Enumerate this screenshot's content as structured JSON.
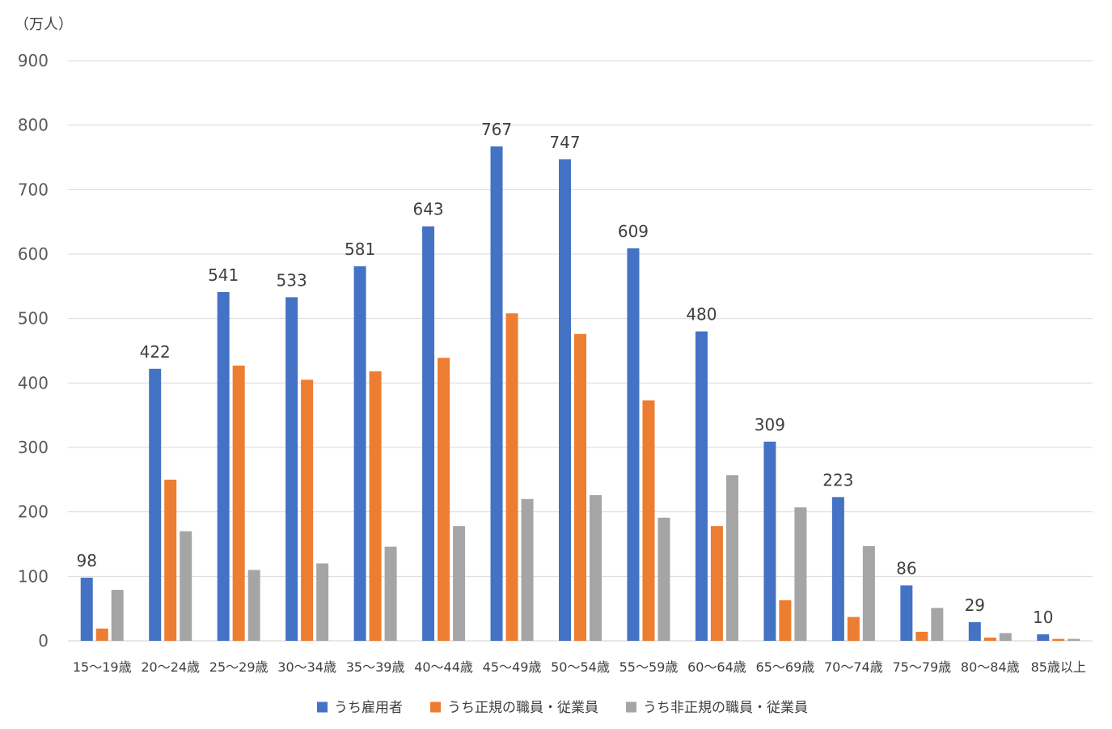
{
  "chart_data": {
    "type": "bar",
    "unit_label": "（万人）",
    "categories": [
      "15～19歳",
      "20～24歳",
      "25～29歳",
      "30～34歳",
      "35～39歳",
      "40～44歳",
      "45～49歳",
      "50～54歳",
      "55～59歳",
      "60～64歳",
      "65～69歳",
      "70～74歳",
      "75～79歳",
      "80～84歳",
      "85歳以上"
    ],
    "series": [
      {
        "name": "うち雇用者",
        "color": "#4472C4",
        "values": [
          98,
          422,
          541,
          533,
          581,
          643,
          767,
          747,
          609,
          480,
          309,
          223,
          86,
          29,
          10
        ]
      },
      {
        "name": "うち正規の職員・従業員",
        "color": "#ED7D31",
        "values": [
          19,
          250,
          427,
          405,
          418,
          439,
          508,
          476,
          373,
          178,
          63,
          37,
          14,
          5,
          3
        ]
      },
      {
        "name": "うち非正規の職員・従業員",
        "color": "#A5A5A5",
        "values": [
          79,
          170,
          110,
          120,
          146,
          178,
          220,
          226,
          191,
          257,
          207,
          147,
          51,
          12,
          3
        ]
      }
    ],
    "data_labels_series": 0,
    "ylim": [
      0,
      900
    ],
    "yticks": [
      0,
      100,
      200,
      300,
      400,
      500,
      600,
      700,
      800,
      900
    ],
    "grid": true,
    "legend_position": "bottom"
  }
}
